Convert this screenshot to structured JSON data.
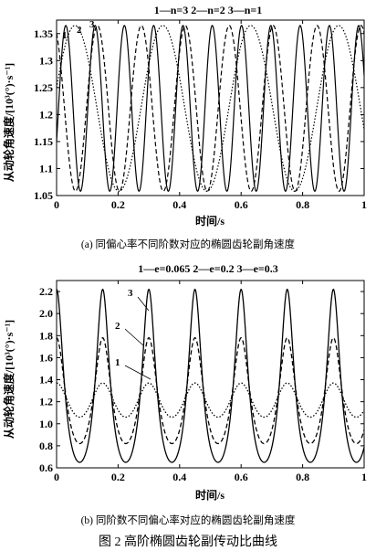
{
  "figure_caption": "图 2   高阶椭圆齿轮副传动比曲线",
  "chart_data": [
    {
      "type": "line",
      "legend_text": "1—n=3   2—n=2   3—n=1",
      "legend_placement": "top",
      "caption": "(a) 同偏心率不同阶数对应的椭圆齿轮副角速度",
      "xlabel": "时间/s",
      "ylabel": "从动轮角速度/[10³(°)·s⁻¹]",
      "xlim": [
        0,
        1
      ],
      "ylim": [
        1.05,
        1.375
      ],
      "xticks": [
        0,
        0.2,
        0.4,
        0.6,
        0.8,
        1
      ],
      "xtick_labels": [
        "0",
        "0.2",
        "0.4",
        "0.6",
        "0.8",
        "1"
      ],
      "yticks": [
        1.05,
        1.1,
        1.15,
        1.2,
        1.25,
        1.3,
        1.35
      ],
      "ytick_labels": [
        "1.05",
        "1.1",
        "1.15",
        "1.2",
        "1.25",
        "1.3",
        "1.35"
      ],
      "grid": false,
      "series": [
        {
          "name": "1",
          "style": "solid",
          "cycles_per_second": 10.5,
          "phase": 0.03,
          "min": 1.058,
          "max": 1.365
        },
        {
          "name": "2",
          "style": "dashed",
          "cycles_per_second": 7,
          "phase": -0.01,
          "min": 1.058,
          "max": 1.365
        },
        {
          "name": "3",
          "style": "dotted",
          "cycles_per_second": 3.5,
          "phase": 0.06,
          "min": 1.058,
          "max": 1.365
        }
      ]
    },
    {
      "type": "line",
      "legend_text": "1—e=0.065   2—e=0.2   3—e=0.3",
      "legend_placement": "top",
      "caption": "(b) 同阶数不同偏心率对应的椭圆齿轮副角速度",
      "xlabel": "时间/s",
      "ylabel": "从动轮角速度/[10³(°)·s⁻¹]",
      "xlim": [
        0,
        1
      ],
      "ylim": [
        0.6,
        2.3
      ],
      "xticks": [
        0,
        0.2,
        0.4,
        0.6,
        0.8,
        1
      ],
      "xtick_labels": [
        "0",
        "0.2",
        "0.4",
        "0.6",
        "0.8",
        "1"
      ],
      "yticks": [
        0.6,
        0.8,
        1.0,
        1.2,
        1.4,
        1.6,
        1.8,
        2.0,
        2.2
      ],
      "ytick_labels": [
        "0.6",
        "0.8",
        "1.0",
        "1.2",
        "1.4",
        "1.6",
        "1.8",
        "2.0",
        "2.2"
      ],
      "grid": false,
      "series": [
        {
          "name": "1",
          "style": "dotted",
          "peaks_at": [
            0.0,
            0.15,
            0.3,
            0.45,
            0.6,
            0.75,
            0.9
          ],
          "min": 1.06,
          "max": 1.37,
          "eccentricity": 0.065
        },
        {
          "name": "2",
          "style": "dashed",
          "peaks_at": [
            0.0,
            0.15,
            0.3,
            0.45,
            0.6,
            0.75,
            0.9
          ],
          "min": 0.82,
          "max": 1.78,
          "eccentricity": 0.2
        },
        {
          "name": "3",
          "style": "solid",
          "peaks_at": [
            0.0,
            0.15,
            0.3,
            0.45,
            0.6,
            0.75,
            0.9
          ],
          "min": 0.65,
          "max": 2.22,
          "eccentricity": 0.3
        }
      ]
    }
  ]
}
